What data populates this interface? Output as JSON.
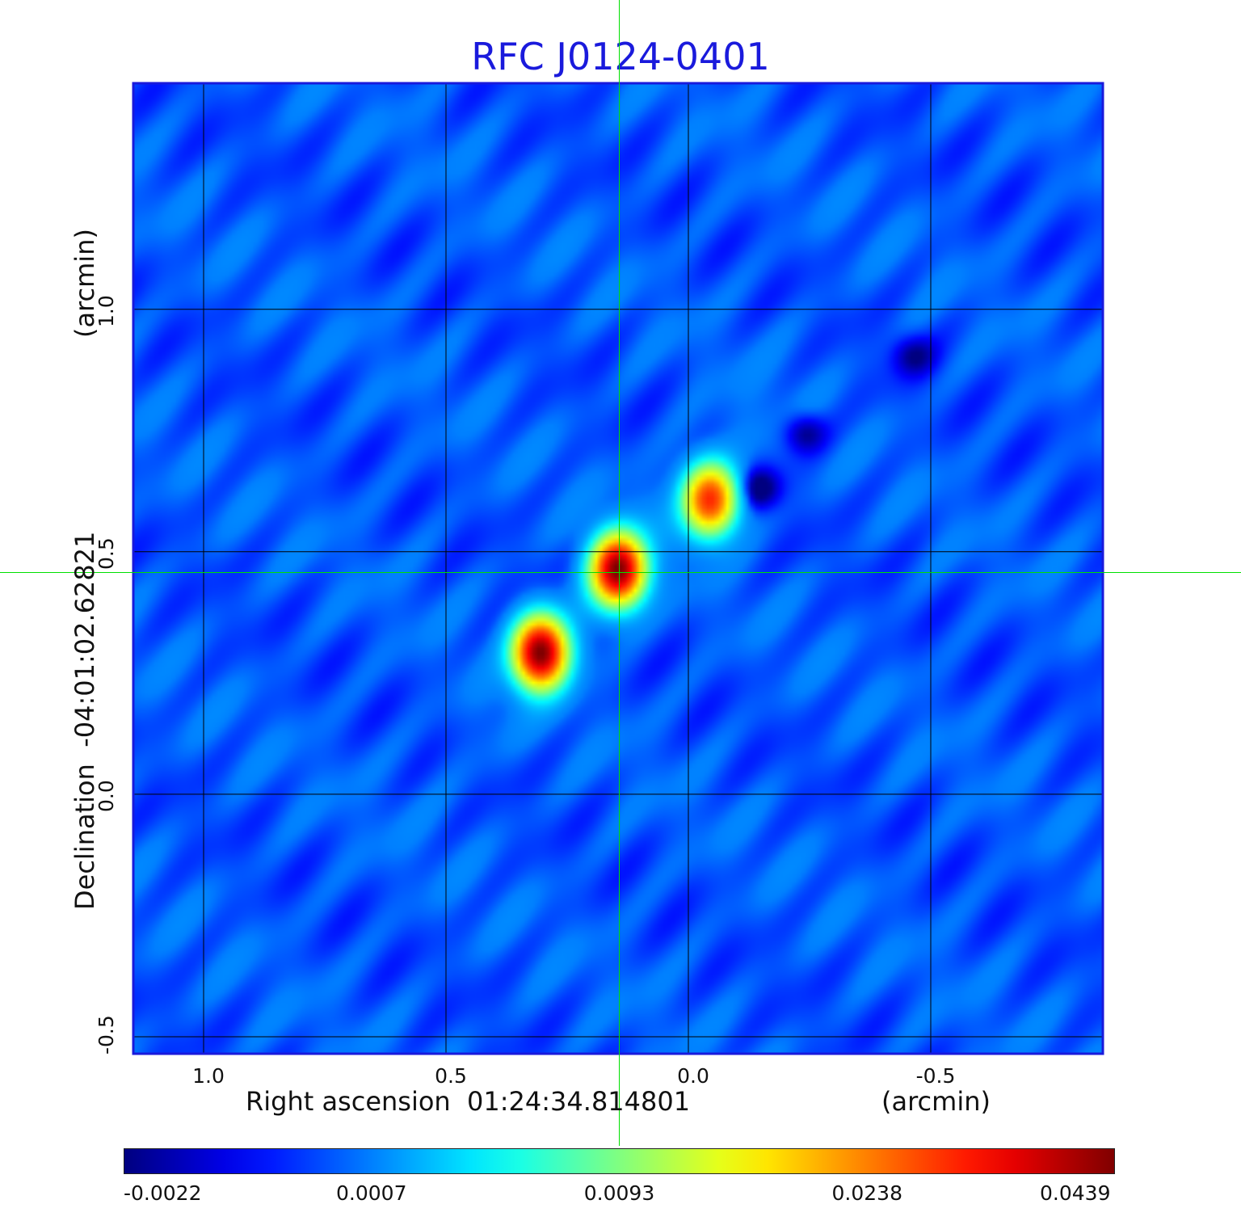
{
  "chart_data": {
    "type": "heatmap",
    "title": "RFC J0124-0401",
    "xlabel": "Right ascension  01:24:34.814801",
    "xunit": "(arcmin)",
    "ylabel": "Declination  -04:01:02.62821",
    "yunit": "(arcmin)",
    "x_ticks": [
      "1.0",
      "0.5",
      "0.0",
      "-0.5"
    ],
    "x_tick_values": [
      1.0,
      0.5,
      0.0,
      -0.5
    ],
    "y_ticks": [
      "-0.5",
      "0.0",
      "0.5",
      "1.0"
    ],
    "y_tick_values": [
      -0.5,
      0.0,
      0.5,
      1.0
    ],
    "xlim": [
      1.145,
      -0.855
    ],
    "ylim": [
      -0.535,
      1.466
    ],
    "grid": true,
    "crosshair": {
      "x": 0.143,
      "y": 0.458,
      "color": "#00e000"
    },
    "colormap": "jet",
    "colorbar": {
      "ticks": [
        "-0.0022",
        "0.0007",
        "0.0093",
        "0.0238",
        "0.0439"
      ],
      "min": -0.0022,
      "max": 0.0439
    },
    "components": [
      {
        "name": "",
        "x": 0.305,
        "y": 0.292,
        "peak": 0.0439
      },
      {
        "name": "",
        "x": 0.145,
        "y": 0.463,
        "peak": 0.043
      },
      {
        "name": "",
        "x": -0.045,
        "y": 0.607,
        "peak": 0.03
      }
    ],
    "negative_features": [
      {
        "x": -0.145,
        "y": 0.63,
        "value": -0.0022
      },
      {
        "x": -0.24,
        "y": 0.745,
        "value": -0.0018
      },
      {
        "x": -0.465,
        "y": 0.905,
        "value": -0.0014
      }
    ]
  }
}
